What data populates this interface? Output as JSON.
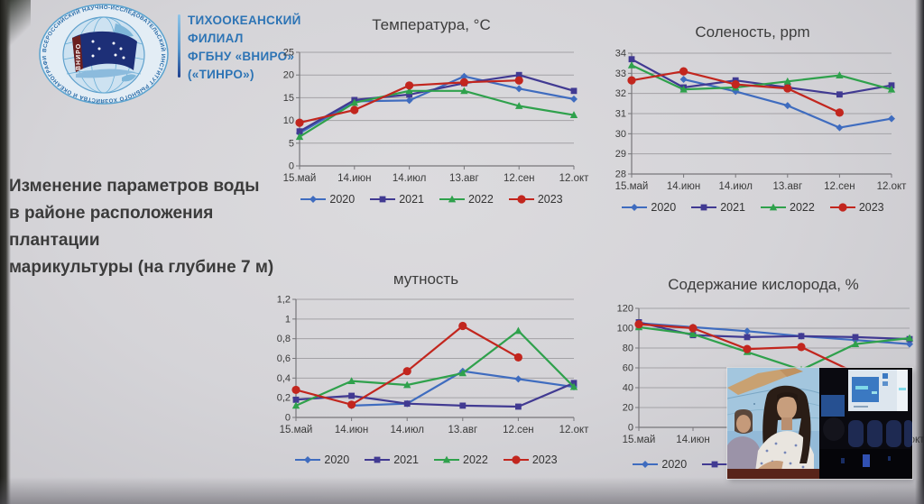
{
  "header": {
    "branch_lines": [
      "ТИХООКЕАНСКИЙ",
      "ФИЛИАЛ",
      "ФГБНУ «ВНИРО»",
      "(«ТИНРО»)"
    ],
    "logo": {
      "ring_text": "ВСЕРОССИЙСКИЙ НАУЧНО-ИССЛЕДОВАТЕЛЬСКИЙ ИНСТИТУТ РЫБНОГО ХОЗЯЙСТВА И ОКЕАНОГРАФИИ • 1881 •",
      "flag_text": "ВНИРО"
    }
  },
  "caption": {
    "lines": [
      "Изменение параметров воды",
      "в районе расположения плантации",
      "марикультуры (на глубине 7 м)"
    ]
  },
  "colors": {
    "accent_blue": "#2d74b5",
    "series_2020": "#3f6cbf",
    "series_2021": "#413a92",
    "series_2022": "#2fa14c",
    "series_2023": "#c2261e"
  },
  "chart_data": [
    {
      "type": "line",
      "title": "Температура, °С",
      "categories": [
        "15.май",
        "14.июн",
        "14.июл",
        "13.авг",
        "12.сен",
        "12.окт"
      ],
      "ylim": [
        0,
        25
      ],
      "yticks": [
        0,
        5,
        10,
        15,
        20,
        25
      ],
      "ytick_labels": [
        "0",
        "5",
        "10",
        "15",
        "20",
        "25"
      ],
      "grid": true,
      "legend_position": "bottom",
      "series": [
        {
          "name": "2020",
          "color": "#3f6cbf",
          "marker": "diamond",
          "values": [
            7.2,
            14.2,
            14.4,
            19.7,
            17.0,
            14.7
          ]
        },
        {
          "name": "2021",
          "color": "#413a92",
          "marker": "square",
          "values": [
            7.6,
            14.5,
            15.7,
            18.2,
            20.0,
            16.5
          ]
        },
        {
          "name": "2022",
          "color": "#2fa14c",
          "marker": "triangle",
          "values": [
            6.4,
            13.9,
            16.5,
            16.5,
            13.2,
            11.2
          ]
        },
        {
          "name": "2023",
          "color": "#c2261e",
          "marker": "circle",
          "values": [
            9.5,
            12.3,
            17.7,
            18.4,
            18.8,
            null
          ]
        }
      ]
    },
    {
      "type": "line",
      "title": "Соленость, ppm",
      "categories": [
        "15.май",
        "14.июн",
        "14.июл",
        "13.авг",
        "12.сен",
        "12.окт"
      ],
      "ylim": [
        28,
        34
      ],
      "yticks": [
        28,
        29,
        30,
        31,
        32,
        33,
        34
      ],
      "ytick_labels": [
        "28",
        "29",
        "30",
        "31",
        "32",
        "33",
        "34"
      ],
      "grid": true,
      "legend_position": "bottom",
      "series": [
        {
          "name": "2020",
          "color": "#3f6cbf",
          "marker": "diamond",
          "values": [
            null,
            32.7,
            32.1,
            31.4,
            30.3,
            30.75
          ]
        },
        {
          "name": "2021",
          "color": "#413a92",
          "marker": "square",
          "values": [
            33.7,
            32.3,
            32.65,
            32.3,
            31.95,
            32.4
          ]
        },
        {
          "name": "2022",
          "color": "#2fa14c",
          "marker": "triangle",
          "values": [
            33.4,
            32.2,
            32.3,
            32.6,
            32.9,
            32.2
          ]
        },
        {
          "name": "2023",
          "color": "#c2261e",
          "marker": "circle",
          "values": [
            32.65,
            33.1,
            32.45,
            32.25,
            31.05,
            null
          ]
        }
      ]
    },
    {
      "type": "line",
      "title": "мутность",
      "categories": [
        "15.май",
        "14.июн",
        "14.июл",
        "13.авг",
        "12.сен",
        "12.окт"
      ],
      "ylim": [
        0,
        1.2
      ],
      "yticks": [
        0,
        0.2,
        0.4,
        0.6,
        0.8,
        1,
        1.2
      ],
      "ytick_labels": [
        "0",
        "0,2",
        "0,4",
        "0,6",
        "0,8",
        "1",
        "1,2"
      ],
      "grid": true,
      "legend_position": "bottom",
      "series": [
        {
          "name": "2020",
          "color": "#3f6cbf",
          "marker": "diamond",
          "values": [
            null,
            0.12,
            0.14,
            0.47,
            0.39,
            0.31
          ]
        },
        {
          "name": "2021",
          "color": "#413a92",
          "marker": "square",
          "values": [
            0.18,
            0.22,
            0.14,
            0.12,
            0.11,
            0.35
          ]
        },
        {
          "name": "2022",
          "color": "#2fa14c",
          "marker": "triangle",
          "values": [
            0.12,
            0.37,
            0.33,
            0.45,
            0.88,
            0.31
          ]
        },
        {
          "name": "2023",
          "color": "#c2261e",
          "marker": "circle",
          "values": [
            0.28,
            0.13,
            0.47,
            0.93,
            0.61,
            null
          ]
        }
      ]
    },
    {
      "type": "line",
      "title": "Содержание кислорода, %",
      "categories": [
        "15.май",
        "14.июн",
        "14.июл",
        "13.авг",
        "12.сен",
        "12.окт"
      ],
      "ylim": [
        0,
        120
      ],
      "yticks": [
        0,
        20,
        40,
        60,
        80,
        100,
        120
      ],
      "ytick_labels": [
        "0",
        "20",
        "40",
        "60",
        "80",
        "100",
        "120"
      ],
      "grid": true,
      "legend_position": "bottom",
      "series": [
        {
          "name": "2020",
          "color": "#3f6cbf",
          "marker": "diamond",
          "values": [
            105,
            101,
            97,
            92,
            88,
            84
          ]
        },
        {
          "name": "2021",
          "color": "#413a92",
          "marker": "square",
          "values": [
            106,
            93,
            91,
            92,
            91,
            89
          ]
        },
        {
          "name": "2022",
          "color": "#2fa14c",
          "marker": "triangle",
          "values": [
            101,
            94,
            76,
            58,
            84,
            90
          ]
        },
        {
          "name": "2023",
          "color": "#c2261e",
          "marker": "circle",
          "values": [
            104,
            100,
            79,
            81,
            55,
            null
          ]
        }
      ]
    }
  ]
}
